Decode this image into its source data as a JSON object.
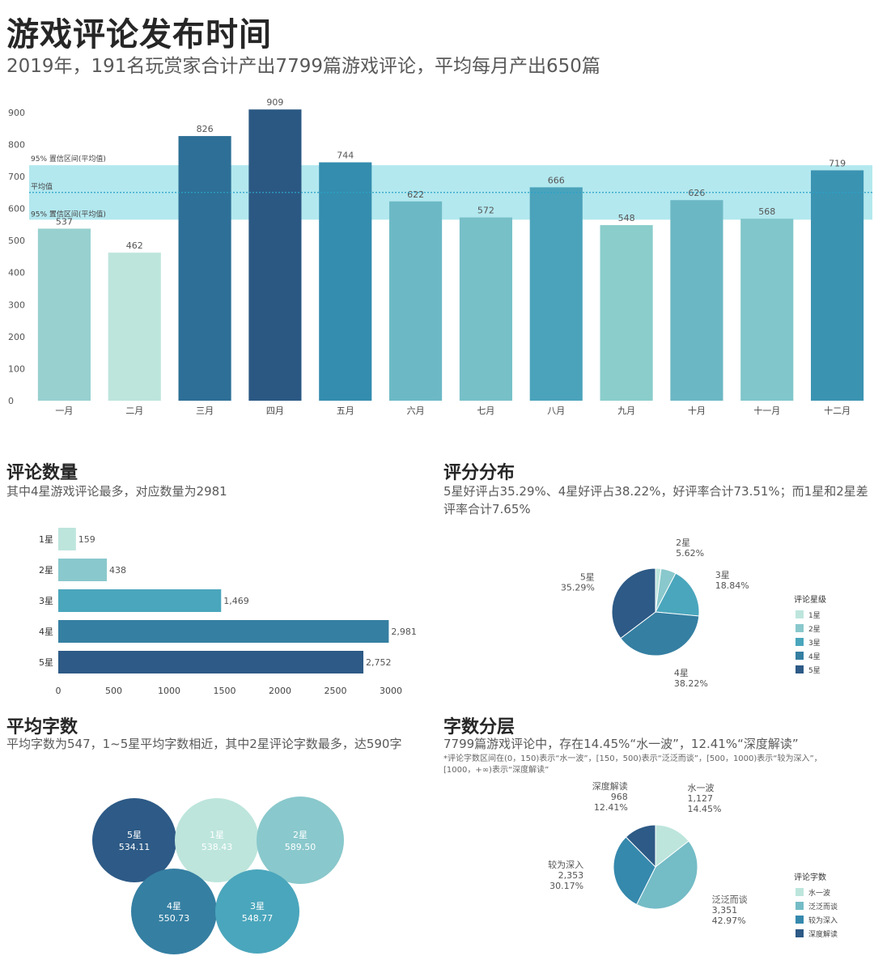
{
  "title": "游戏评论发布时间",
  "subtitle": "2019年，191名玩赏家合计产出7799篇游戏评论，平均每月产出650篇",
  "monthly": {
    "band_label_top": "95% 置信区间(平均值)",
    "band_label_bottom": "95% 置信区间(平均值)",
    "mean_label": "平均值"
  },
  "sections": {
    "count_title": "评论数量",
    "count_desc": "其中4星游戏评论最多，对应数量为2981",
    "rating_title": "评分分布",
    "rating_desc": "5星好评占35.29%、4星好评占38.22%，好评率合计73.51%；而1星和2星差评率合计7.65%",
    "avg_title": "平均字数",
    "avg_desc": "平均字数为547，1~5星平均字数相近，其中2星评论字数最多，达590字",
    "tier_title": "字数分层",
    "tier_desc": "7799篇游戏评论中，存在14.45%“水一波”，12.41%“深度解读”",
    "tier_note": "*评论字数区间在(0，150)表示“水一波”，[150，500)表示“泛泛而谈”，[500，1000)表示“较为深入”，[1000，+∞)表示“深度解读”"
  },
  "chart_data": [
    {
      "id": "monthly",
      "type": "bar",
      "categories": [
        "一月",
        "二月",
        "三月",
        "四月",
        "五月",
        "六月",
        "七月",
        "八月",
        "九月",
        "十月",
        "十一月",
        "十二月"
      ],
      "values": [
        537,
        462,
        826,
        909,
        744,
        622,
        572,
        666,
        548,
        626,
        568,
        719
      ],
      "data_labels": [
        "537",
        "462",
        "826",
        "909",
        "744",
        "622",
        "572",
        "666",
        "548",
        "626",
        "568",
        "719"
      ],
      "colors": [
        "#97d0cf",
        "#bde5dc",
        "#2d6f96",
        "#2b5883",
        "#348dae",
        "#6cb9c5",
        "#77c0c8",
        "#4aa3bb",
        "#8acdcb",
        "#6cb7c4",
        "#80c6ca",
        "#3b93b2"
      ],
      "mean": 650,
      "ci_band": [
        565,
        735
      ],
      "ylim": [
        0,
        950
      ],
      "yticks": [
        0,
        100,
        200,
        300,
        400,
        500,
        600,
        700,
        800,
        900
      ],
      "band_color": "#b3e8ef",
      "mean_line_color": "#2aa2c8"
    },
    {
      "id": "count",
      "type": "bar",
      "orientation": "horizontal",
      "categories": [
        "1星",
        "2星",
        "3星",
        "4星",
        "5星"
      ],
      "values": [
        159,
        438,
        1469,
        2981,
        2752
      ],
      "data_labels": [
        "159",
        "438",
        "1,469",
        "2,981",
        "2,752"
      ],
      "colors": [
        "#bde5dc",
        "#89c8cc",
        "#4aa6bc",
        "#357fa2",
        "#2d5a86"
      ],
      "xlim": [
        0,
        3000
      ],
      "xticks": [
        0,
        500,
        1000,
        1500,
        2000,
        2500,
        3000
      ]
    },
    {
      "id": "rating",
      "type": "pie",
      "legend_title": "评论星级",
      "labels": [
        "1星",
        "2星",
        "3星",
        "4星",
        "5星"
      ],
      "values": [
        159,
        438,
        1469,
        2981,
        2752
      ],
      "percents": [
        "",
        "5.62%",
        "18.84%",
        "38.22%",
        "35.29%"
      ],
      "colors": [
        "#bde5dc",
        "#89c8cc",
        "#4aa6bc",
        "#357fa2",
        "#2d5a86"
      ],
      "legend_placement": "right"
    },
    {
      "id": "avg",
      "type": "bubble",
      "items": [
        {
          "label": "5星",
          "value": "534.11",
          "color": "#2d5a86"
        },
        {
          "label": "1星",
          "value": "538.43",
          "color": "#bde5dc"
        },
        {
          "label": "2星",
          "value": "589.50",
          "color": "#89c8cc"
        },
        {
          "label": "4星",
          "value": "550.73",
          "color": "#357fa2"
        },
        {
          "label": "3星",
          "value": "548.77",
          "color": "#4aa6bc"
        }
      ]
    },
    {
      "id": "tier",
      "type": "pie",
      "legend_title": "评论字数",
      "labels": [
        "水一波",
        "泛泛而谈",
        "较为深入",
        "深度解读"
      ],
      "values": [
        1127,
        3351,
        2353,
        968
      ],
      "value_labels": [
        "1,127",
        "3,351",
        "2,353",
        "968"
      ],
      "percents": [
        "14.45%",
        "42.97%",
        "30.17%",
        "12.41%"
      ],
      "colors": [
        "#bde5dc",
        "#74bcc6",
        "#3589ad",
        "#2d5a86"
      ],
      "legend_placement": "right"
    }
  ]
}
